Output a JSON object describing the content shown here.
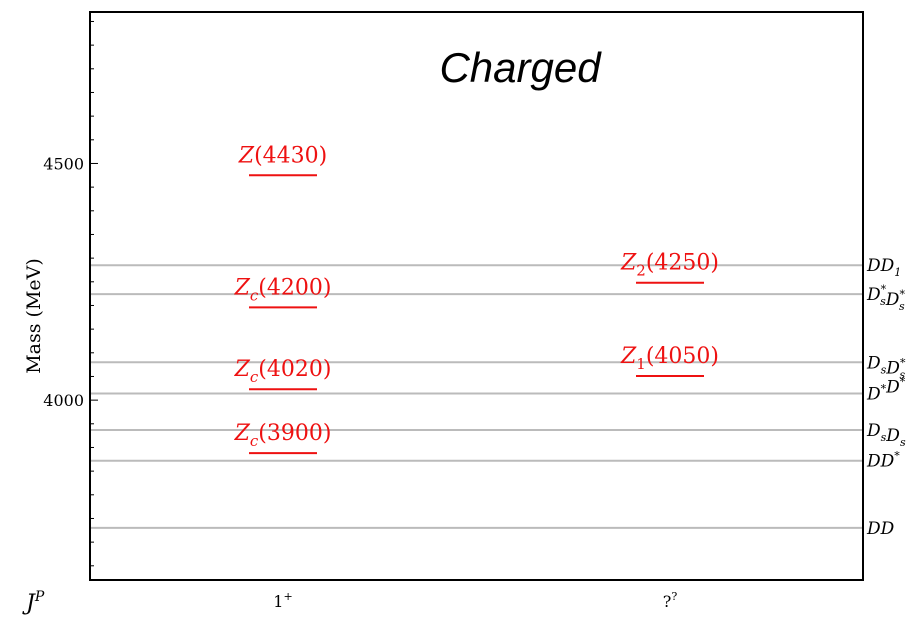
{
  "chart_data": {
    "type": "level-diagram",
    "title": "Charged",
    "ylabel": "Mass (MeV)",
    "xlabel": "J^P",
    "ylim": [
      3620,
      4820
    ],
    "yticks": [
      4000,
      4500
    ],
    "categories": [
      "1+",
      "??"
    ],
    "category_labels": [
      {
        "base": "1",
        "sup": "+"
      },
      {
        "base": "?",
        "sup": "?"
      }
    ],
    "xlabel_parts": {
      "base": "J",
      "sup": "P"
    },
    "thresholds": [
      {
        "mass": 4285,
        "label": [
          {
            "t": "DD",
            "s": ""
          },
          {
            "t": "",
            "s": "1",
            "sub": true
          }
        ]
      },
      {
        "mass": 4224,
        "label": [
          {
            "t": "D",
            "s": "s",
            "sup": "*"
          },
          {
            "t": "D",
            "s": "s",
            "sup": "*"
          }
        ]
      },
      {
        "mass": 4080,
        "label": [
          {
            "t": "D",
            "s": "s"
          },
          {
            "t": "D",
            "s": "s",
            "sup": "*"
          }
        ]
      },
      {
        "mass": 4014,
        "label": [
          {
            "t": "D",
            "s": "",
            "sup": "*"
          },
          {
            "t": "D",
            "s": "",
            "sup": "*"
          }
        ]
      },
      {
        "mass": 3937,
        "label": [
          {
            "t": "D",
            "s": "s"
          },
          {
            "t": "D",
            "s": "s"
          }
        ]
      },
      {
        "mass": 3872,
        "label": [
          {
            "t": "DD",
            "s": "",
            "sup": "*"
          }
        ]
      },
      {
        "mass": 3730,
        "label": [
          {
            "t": "DD",
            "s": ""
          }
        ]
      }
    ],
    "states": [
      {
        "name_base": "Z",
        "name_sub": "",
        "name_mass": "(4430)",
        "category": 0,
        "mass": 4475
      },
      {
        "name_base": "Z",
        "name_sub": "c",
        "name_mass": "(4200)",
        "category": 0,
        "mass": 4196
      },
      {
        "name_base": "Z",
        "name_sub": "c",
        "name_mass": "(4020)",
        "category": 0,
        "mass": 4023
      },
      {
        "name_base": "Z",
        "name_sub": "c",
        "name_mass": "(3900)",
        "category": 0,
        "mass": 3888
      },
      {
        "name_base": "Z",
        "name_sub": "2",
        "name_mass": "(4250)",
        "category": 1,
        "mass": 4248
      },
      {
        "name_base": "Z",
        "name_sub": "1",
        "name_mass": "(4050)",
        "category": 1,
        "mass": 4051
      }
    ],
    "colors": {
      "states": "#ee1111",
      "thresholds": "#bbbbbb",
      "axes": "#000000"
    },
    "grid": false,
    "legend": "none"
  }
}
